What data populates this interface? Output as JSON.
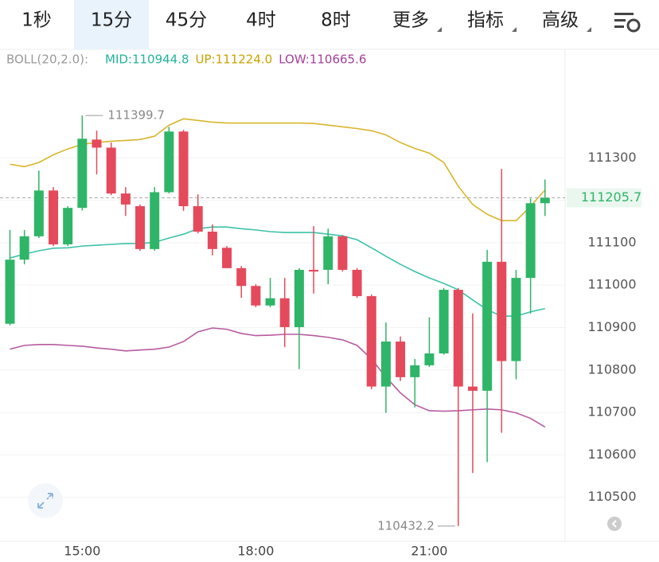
{
  "chart_data": {
    "type": "candlestick",
    "tabs": [
      {
        "label": "1秒"
      },
      {
        "label": "15分"
      },
      {
        "label": "45分"
      },
      {
        "label": "4时"
      },
      {
        "label": "8时"
      },
      {
        "label": "更多",
        "dropdown": true
      },
      {
        "label": "指标",
        "dropdown": true
      },
      {
        "label": "高级",
        "dropdown": true
      }
    ],
    "selected_tab": 1,
    "indicator_name": "BOLL(20,2.0):",
    "categories": [
      null,
      null,
      null,
      null,
      null,
      "15:00",
      null,
      null,
      null,
      null,
      null,
      null,
      null,
      null,
      null,
      null,
      null,
      "18:00",
      null,
      null,
      null,
      null,
      null,
      null,
      null,
      null,
      null,
      null,
      null,
      "21:00",
      null,
      null,
      null,
      null,
      null,
      null,
      null,
      null
    ],
    "candles": {
      "up_color": "#2fb567",
      "down_color": "#e44a5b",
      "open": [
        110909,
        111060,
        111115,
        111223,
        111096,
        111182,
        111343,
        111324,
        111216,
        111186,
        111085,
        111219,
        111362,
        111186,
        111126,
        111088,
        111040,
        110998,
        110952,
        110969,
        110901,
        111036,
        111036,
        111115,
        111036,
        110974,
        110761,
        110867,
        110783,
        110811,
        110839,
        110989,
        110761,
        110751,
        111055,
        110821,
        111017,
        111193
      ],
      "high": [
        111130,
        111130,
        111270,
        111231,
        111186,
        111399.7,
        111364,
        111336,
        111231,
        111190,
        111231,
        111373,
        111366,
        111214,
        111143,
        111092,
        111045,
        111002,
        111017,
        111017,
        111040,
        111139,
        111133,
        111118,
        111040,
        110978,
        110912,
        110879,
        110826,
        110924,
        110993,
        110993,
        110933,
        111083,
        111274,
        111036,
        111204,
        111249
      ],
      "low": [
        110905,
        111049,
        111111,
        111092,
        111092,
        111176,
        111261,
        111212,
        111163,
        111081,
        111081,
        111216,
        111175,
        111122,
        111070,
        111040,
        110970,
        110948,
        110948,
        110854,
        110802,
        110980,
        111002,
        111032,
        110970,
        110755,
        110699,
        110774,
        110712,
        110807,
        110836,
        110432.2,
        110557,
        110583,
        110652,
        110778,
        110933,
        111163
      ],
      "close": [
        111060,
        111115,
        111223,
        111096,
        111182,
        111345,
        111324,
        111216,
        111190,
        111085,
        111219,
        111362,
        111186,
        111126,
        111085,
        111040,
        110998,
        110952,
        110969,
        110901,
        111036,
        111032,
        111115,
        111036,
        110974,
        110761,
        110867,
        110783,
        110811,
        110839,
        110989,
        110761,
        110751,
        111055,
        110821,
        111017,
        111193,
        111205.7
      ]
    },
    "bands": [
      {
        "label": "MID:110944.8",
        "color": "#3cc2a8",
        "text_color": "#22b39b",
        "values": [
          111064,
          111073,
          111081,
          111087,
          111088,
          111092,
          111094,
          111096,
          111098,
          111098,
          111101,
          111111,
          111120,
          111133,
          111137,
          111137,
          111133,
          111130,
          111126,
          111124,
          111124,
          111124,
          111120,
          111116,
          111107,
          111088,
          111068,
          111049,
          111032,
          111017,
          111004,
          110989,
          110965,
          110942,
          110927,
          110927,
          110937,
          110944.8
        ]
      },
      {
        "label": "UP:111224.0",
        "color": "#d8b62c",
        "text_color": "#c6a300",
        "values": [
          111285,
          111279,
          111289,
          111307,
          111321,
          111332,
          111336,
          111339,
          111341,
          111343,
          111351,
          111377,
          111392,
          111388,
          111384,
          111382,
          111382,
          111382,
          111382,
          111382,
          111382,
          111381,
          111377,
          111373,
          111369,
          111364,
          111354,
          111336,
          111322,
          111311,
          111289,
          111233,
          111190,
          111167,
          111152,
          111152,
          111186,
          111224
        ]
      },
      {
        "label": "LOW:110665.6",
        "color": "#b75aa0",
        "text_color": "#a4409a",
        "values": [
          110849,
          110858,
          110860,
          110860,
          110858,
          110856,
          110852,
          110849,
          110845,
          110847,
          110849,
          110854,
          110867,
          110890,
          110899,
          110896,
          110886,
          110881,
          110882,
          110884,
          110884,
          110881,
          110877,
          110871,
          110858,
          110826,
          110783,
          110746,
          110718,
          110704,
          110703,
          110704,
          110706,
          110708,
          110706,
          110699,
          110686,
          110665.6
        ]
      }
    ],
    "ylim": [
      110400,
      111550
    ],
    "yticks": [
      110500,
      110600,
      110700,
      110800,
      110900,
      111000,
      111100,
      111200,
      111300
    ],
    "grid": true
  }
}
